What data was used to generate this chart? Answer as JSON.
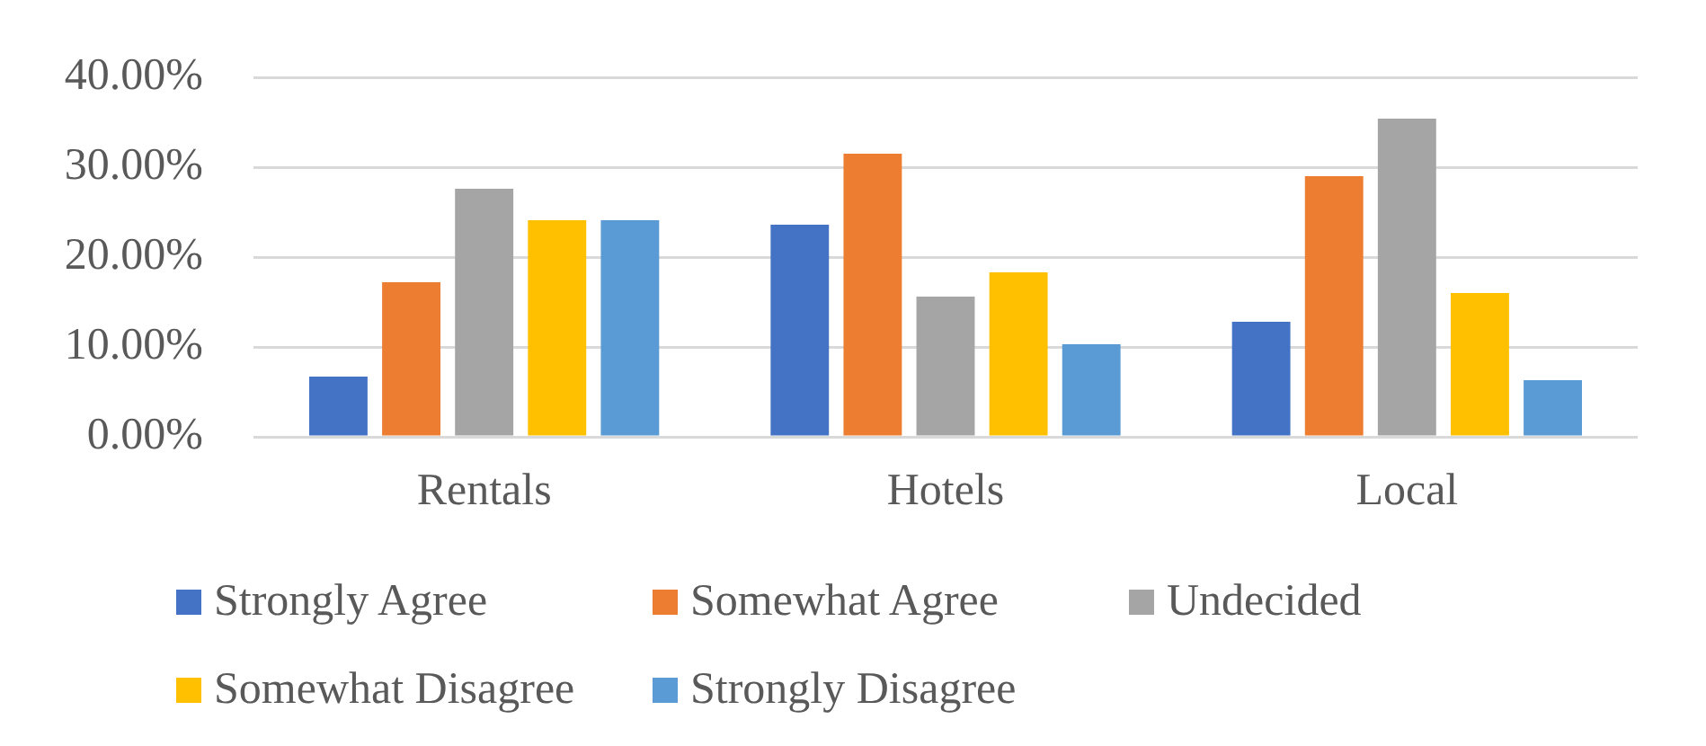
{
  "chart_data": {
    "type": "bar",
    "categories": [
      "Rentals",
      "Hotels",
      "Local"
    ],
    "series": [
      {
        "name": "Strongly Agree",
        "color": "#4472c4",
        "values": [
          6.7,
          23.6,
          12.8
        ]
      },
      {
        "name": "Somewhat Agree",
        "color": "#ed7d31",
        "values": [
          17.2,
          31.5,
          29.0
        ]
      },
      {
        "name": "Undecided",
        "color": "#a5a5a5",
        "values": [
          27.6,
          15.6,
          35.4
        ]
      },
      {
        "name": "Somewhat Disagree",
        "color": "#ffc000",
        "values": [
          24.1,
          18.3,
          16.0
        ]
      },
      {
        "name": "Strongly Disagree",
        "color": "#5b9bd5",
        "values": [
          24.1,
          10.3,
          6.3
        ]
      }
    ],
    "ylim": [
      0,
      40
    ],
    "yticks": [
      {
        "value": 0,
        "label": "0.00%"
      },
      {
        "value": 10,
        "label": "10.00%"
      },
      {
        "value": 20,
        "label": "20.00%"
      },
      {
        "value": 30,
        "label": "30.00%"
      },
      {
        "value": 40,
        "label": "40.00%"
      }
    ],
    "grid": "y",
    "legend": "bottom"
  }
}
